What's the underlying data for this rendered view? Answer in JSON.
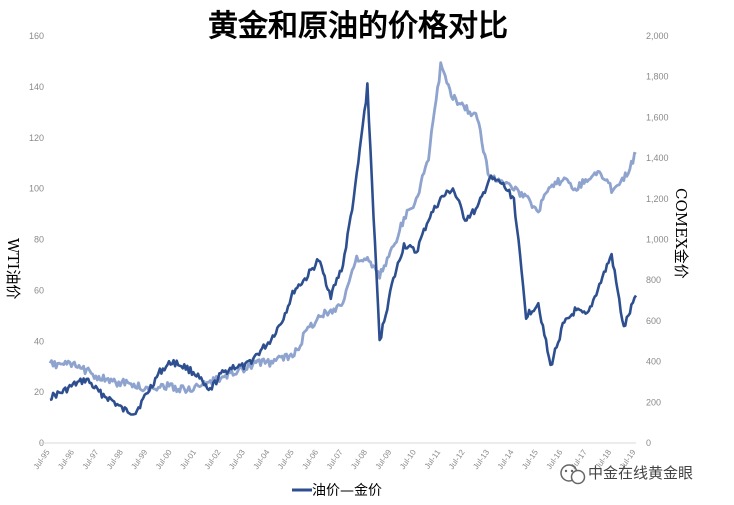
{
  "chart_data": {
    "type": "line",
    "title": "黄金和原油的价格对比",
    "ylabel": "WTI油价",
    "y2label": "COMEX金价",
    "ylim": [
      0,
      160
    ],
    "y2lim": [
      0,
      2000
    ],
    "yticks": [
      "0",
      "20",
      "40",
      "60",
      "80",
      "100",
      "120",
      "140",
      "160"
    ],
    "y2ticks": [
      "0",
      "200",
      "400",
      "600",
      "800",
      "1,000",
      "1,200",
      "1,400",
      "1,600",
      "1,800",
      "2,000"
    ],
    "categories": [
      "Jul-95",
      "Jul-96",
      "Jul-97",
      "Jul-98",
      "Jul-99",
      "Jul-00",
      "Jul-01",
      "Jul-02",
      "Jul-03",
      "Jul-04",
      "Jul-05",
      "Jul-06",
      "Jul-07",
      "Jul-08",
      "Jul-09",
      "Jul-10",
      "Jul-11",
      "Jul-12",
      "Jul-13",
      "Jul-14",
      "Jul-15",
      "Jul-16",
      "Jul-17",
      "Jul-18",
      "Jul-19"
    ],
    "legend_text": "油价—金价",
    "grid": false,
    "series": [
      {
        "name": "油价",
        "axis": "left",
        "color": "#2e4f8f",
        "x": [
          1995.5,
          1996.0,
          1996.5,
          1997.0,
          1997.5,
          1998.0,
          1998.5,
          1999.0,
          1999.5,
          2000.0,
          2000.5,
          2001.0,
          2001.5,
          2002.0,
          2002.5,
          2003.0,
          2003.5,
          2004.0,
          2004.5,
          2005.0,
          2005.5,
          2006.0,
          2006.5,
          2007.0,
          2007.5,
          2008.0,
          2008.5,
          2009.0,
          2009.5,
          2010.0,
          2010.5,
          2011.0,
          2011.5,
          2012.0,
          2012.5,
          2013.0,
          2013.5,
          2014.0,
          2014.5,
          2015.0,
          2015.5,
          2016.0,
          2016.5,
          2017.0,
          2017.5,
          2018.0,
          2018.5,
          2019.0,
          2019.5
        ],
        "values": [
          18,
          20,
          23,
          25,
          20,
          17,
          13,
          12,
          20,
          28,
          32,
          30,
          27,
          20,
          27,
          30,
          30,
          35,
          40,
          48,
          60,
          65,
          72,
          58,
          70,
          100,
          140,
          40,
          62,
          78,
          75,
          88,
          96,
          100,
          88,
          92,
          104,
          102,
          96,
          50,
          55,
          30,
          46,
          52,
          50,
          62,
          74,
          45,
          58
        ]
      },
      {
        "name": "金价",
        "axis": "right",
        "color": "#8fa3cf",
        "x": [
          1995.5,
          1996.0,
          1996.5,
          1997.0,
          1997.5,
          1998.0,
          1998.5,
          1999.0,
          1999.5,
          2000.0,
          2000.5,
          2001.0,
          2001.5,
          2002.0,
          2002.5,
          2003.0,
          2003.5,
          2004.0,
          2004.5,
          2005.0,
          2005.5,
          2006.0,
          2006.5,
          2007.0,
          2007.5,
          2008.0,
          2008.5,
          2009.0,
          2009.5,
          2010.0,
          2010.5,
          2011.0,
          2011.5,
          2012.0,
          2012.5,
          2013.0,
          2013.5,
          2014.0,
          2014.5,
          2015.0,
          2015.5,
          2016.0,
          2016.5,
          2017.0,
          2017.5,
          2018.0,
          2018.5,
          2019.0,
          2019.5
        ],
        "values": [
          385,
          390,
          380,
          355,
          325,
          300,
          295,
          285,
          260,
          285,
          275,
          265,
          270,
          300,
          315,
          350,
          360,
          400,
          395,
          420,
          430,
          550,
          620,
          650,
          690,
          900,
          900,
          820,
          950,
          1100,
          1200,
          1400,
          1850,
          1700,
          1650,
          1600,
          1300,
          1300,
          1250,
          1200,
          1150,
          1250,
          1300,
          1250,
          1300,
          1330,
          1250,
          1300,
          1420
        ]
      }
    ]
  },
  "watermark": {
    "text": "中金在线黄金眼",
    "icon": "wechat-icon"
  }
}
